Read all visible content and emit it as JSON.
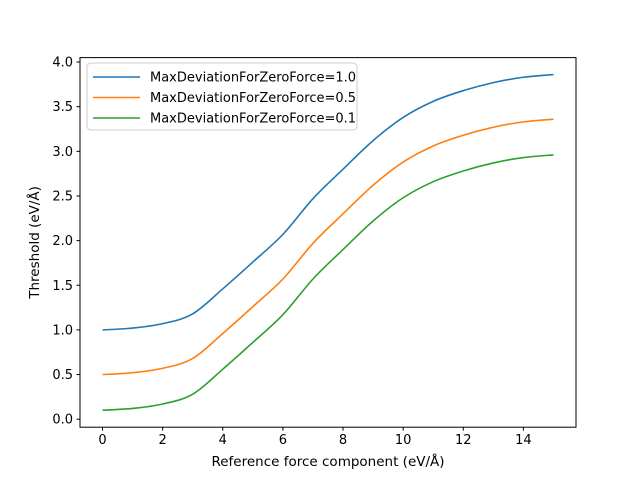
{
  "figure": {
    "background": "#ffffff"
  },
  "chart_data": {
    "type": "line",
    "title": "",
    "xlabel": "Reference force component (eV/Å)",
    "ylabel": "Threshold (eV/Å)",
    "x": [
      0,
      1,
      2,
      3,
      4,
      5,
      6,
      7,
      8,
      9,
      10,
      11,
      12,
      13,
      14,
      15
    ],
    "series": [
      {
        "name": "MaxDeviationForZeroForce=1.0",
        "color": "#1f77b4",
        "values": [
          1.0,
          1.02,
          1.07,
          1.18,
          1.46,
          1.76,
          2.07,
          2.47,
          2.8,
          3.12,
          3.38,
          3.56,
          3.68,
          3.77,
          3.83,
          3.86
        ]
      },
      {
        "name": "MaxDeviationForZeroForce=0.5",
        "color": "#ff7f0e",
        "values": [
          0.5,
          0.52,
          0.57,
          0.68,
          0.96,
          1.26,
          1.57,
          1.97,
          2.3,
          2.62,
          2.88,
          3.06,
          3.18,
          3.27,
          3.33,
          3.36
        ]
      },
      {
        "name": "MaxDeviationForZeroForce=0.1",
        "color": "#2ca02c",
        "values": [
          0.1,
          0.12,
          0.17,
          0.28,
          0.56,
          0.86,
          1.17,
          1.57,
          1.9,
          2.22,
          2.48,
          2.66,
          2.78,
          2.87,
          2.93,
          2.96
        ]
      }
    ],
    "xlim": [
      -0.75,
      15.75
    ],
    "ylim": [
      -0.09,
      4.05
    ],
    "xticks": [
      0,
      2,
      4,
      6,
      8,
      10,
      12,
      14
    ],
    "xtick_labels": [
      "0",
      "2",
      "4",
      "6",
      "8",
      "10",
      "12",
      "14"
    ],
    "yticks": [
      0.0,
      0.5,
      1.0,
      1.5,
      2.0,
      2.5,
      3.0,
      3.5,
      4.0
    ],
    "ytick_labels": [
      "0.0",
      "0.5",
      "1.0",
      "1.5",
      "2.0",
      "2.5",
      "3.0",
      "3.5",
      "4.0"
    ],
    "grid": false,
    "legend": {
      "position": "upper left",
      "frame": true
    }
  },
  "style": {
    "line_width": 1.6,
    "axis_color": "#000000",
    "legend_border_color": "#cccccc",
    "legend_background": "#ffffff"
  }
}
